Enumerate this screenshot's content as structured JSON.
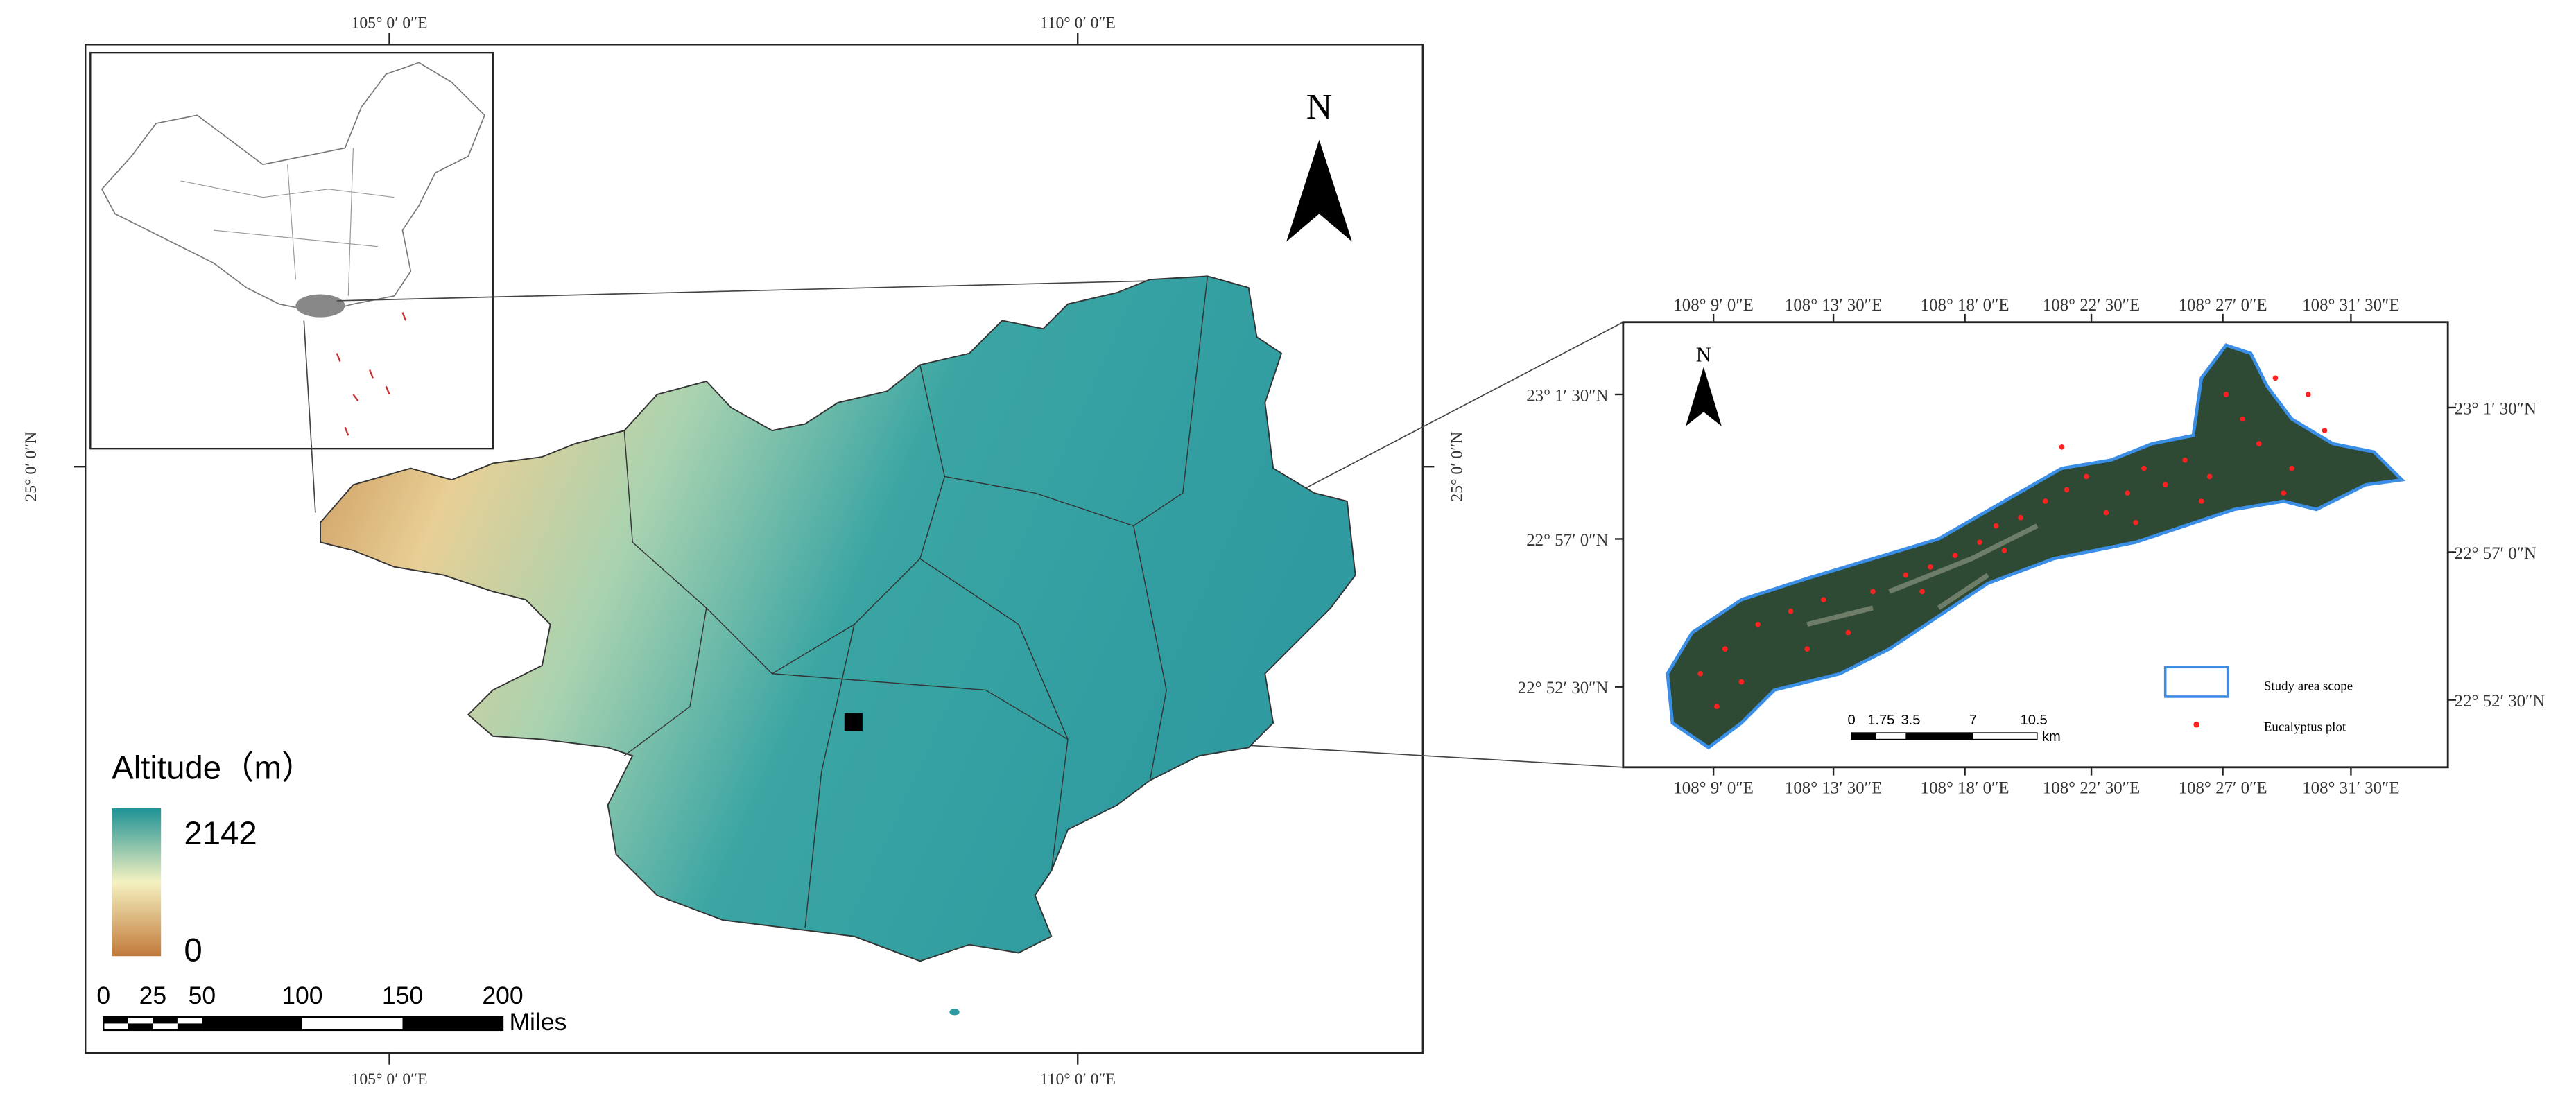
{
  "main_map": {
    "top_ticks": [
      "105° 0′ 0″E",
      "110° 0′ 0″E"
    ],
    "bottom_ticks": [
      "105° 0′ 0″E",
      "110° 0′ 0″E"
    ],
    "left_ticks": [
      "25° 0′ 0″N"
    ],
    "right_ticks": [
      "25° 0′ 0″N"
    ],
    "north_label": "N",
    "legend": {
      "title": "Altitude（m）",
      "max": "2142",
      "min": "0"
    },
    "scale_bar": {
      "labels": [
        "0",
        "25",
        "50",
        "100",
        "150",
        "200"
      ],
      "unit": "Miles"
    }
  },
  "inset_map": {
    "top_ticks": [
      "108° 9′ 0″E",
      "108° 13′ 30″E",
      "108° 18′ 0″E",
      "108° 22′ 30″E",
      "108° 27′ 0″E",
      "108° 31′ 30″E"
    ],
    "bottom_ticks": [
      "108° 9′ 0″E",
      "108° 13′ 30″E",
      "108° 18′ 0″E",
      "108° 22′ 30″E",
      "108° 27′ 0″E",
      "108° 31′ 30″E"
    ],
    "left_ticks": [
      "23° 1′ 30″N",
      "22° 57′ 0″N",
      "22° 52′ 30″N"
    ],
    "right_ticks": [
      "23° 1′ 30″N",
      "22° 57′ 0″N",
      "22° 52′ 30″N"
    ],
    "north_label": "N",
    "scale_bar": {
      "labels": [
        "0",
        "1.75",
        "3.5",
        "7",
        "10.5"
      ],
      "unit": "km"
    },
    "legend": [
      "Study area scope",
      "Eucalyptus plot"
    ]
  }
}
